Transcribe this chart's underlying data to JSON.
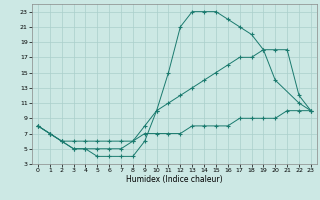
{
  "title": "",
  "xlabel": "Humidex (Indice chaleur)",
  "background_color": "#cce8e4",
  "grid_color": "#aacfcb",
  "line_color": "#1a7a6e",
  "xlim": [
    -0.5,
    23.5
  ],
  "ylim": [
    3,
    24
  ],
  "xticks": [
    0,
    1,
    2,
    3,
    4,
    5,
    6,
    7,
    8,
    9,
    10,
    11,
    12,
    13,
    14,
    15,
    16,
    17,
    18,
    19,
    20,
    21,
    22,
    23
  ],
  "yticks": [
    3,
    5,
    7,
    9,
    11,
    13,
    15,
    17,
    19,
    21,
    23
  ],
  "curve1_x": [
    0,
    1,
    2,
    3,
    4,
    5,
    6,
    7,
    8,
    9,
    10,
    11,
    12,
    13,
    14,
    15,
    16,
    17,
    18,
    19,
    20,
    22,
    23
  ],
  "curve1_y": [
    8,
    7,
    6,
    5,
    5,
    4,
    4,
    4,
    4,
    6,
    10,
    15,
    21,
    23,
    23,
    23,
    22,
    21,
    20,
    18,
    14,
    11,
    10
  ],
  "curve2_x": [
    0,
    1,
    2,
    3,
    4,
    5,
    6,
    7,
    8,
    9,
    10,
    11,
    12,
    13,
    14,
    15,
    16,
    17,
    18,
    19,
    20,
    21,
    22,
    23
  ],
  "curve2_y": [
    8,
    7,
    6,
    5,
    5,
    5,
    5,
    5,
    6,
    8,
    10,
    11,
    12,
    13,
    14,
    15,
    16,
    17,
    17,
    18,
    18,
    18,
    12,
    10
  ],
  "curve3_x": [
    0,
    1,
    2,
    3,
    4,
    5,
    6,
    7,
    8,
    9,
    10,
    11,
    12,
    13,
    14,
    15,
    16,
    17,
    18,
    19,
    20,
    21,
    22,
    23
  ],
  "curve3_y": [
    8,
    7,
    6,
    6,
    6,
    6,
    6,
    6,
    6,
    7,
    7,
    7,
    7,
    8,
    8,
    8,
    8,
    9,
    9,
    9,
    9,
    10,
    10,
    10
  ]
}
